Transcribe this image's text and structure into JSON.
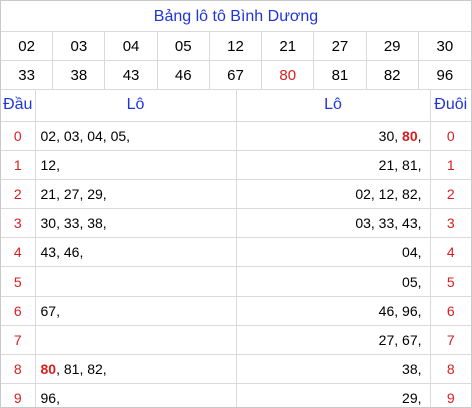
{
  "title": "Bảng lô tô Bình Dương",
  "numbers": [
    {
      "v": "02"
    },
    {
      "v": "03"
    },
    {
      "v": "04"
    },
    {
      "v": "05"
    },
    {
      "v": "12"
    },
    {
      "v": "21"
    },
    {
      "v": "27"
    },
    {
      "v": "29"
    },
    {
      "v": "30"
    },
    {
      "v": "33"
    },
    {
      "v": "38"
    },
    {
      "v": "43"
    },
    {
      "v": "46"
    },
    {
      "v": "67"
    },
    {
      "v": "80",
      "highlight": true
    },
    {
      "v": "81"
    },
    {
      "v": "82"
    },
    {
      "v": "96"
    }
  ],
  "headers": {
    "dau": "Đầu",
    "lo_left": "Lô",
    "lo_right": "Lô",
    "duoi": "Đuôi"
  },
  "rows": [
    {
      "dau": "0",
      "left": [
        {
          "v": "02"
        },
        {
          "v": "03"
        },
        {
          "v": "04"
        },
        {
          "v": "05"
        }
      ],
      "right": [
        {
          "v": "30"
        },
        {
          "v": "80",
          "special": true
        }
      ],
      "duoi": "0"
    },
    {
      "dau": "1",
      "left": [
        {
          "v": "12"
        }
      ],
      "right": [
        {
          "v": "21"
        },
        {
          "v": "81"
        }
      ],
      "duoi": "1"
    },
    {
      "dau": "2",
      "left": [
        {
          "v": "21"
        },
        {
          "v": "27"
        },
        {
          "v": "29"
        }
      ],
      "right": [
        {
          "v": "02"
        },
        {
          "v": "12"
        },
        {
          "v": "82"
        }
      ],
      "duoi": "2"
    },
    {
      "dau": "3",
      "left": [
        {
          "v": "30"
        },
        {
          "v": "33"
        },
        {
          "v": "38"
        }
      ],
      "right": [
        {
          "v": "03"
        },
        {
          "v": "33"
        },
        {
          "v": "43"
        }
      ],
      "duoi": "3"
    },
    {
      "dau": "4",
      "left": [
        {
          "v": "43"
        },
        {
          "v": "46"
        }
      ],
      "right": [
        {
          "v": "04"
        }
      ],
      "duoi": "4"
    },
    {
      "dau": "5",
      "left": [],
      "right": [
        {
          "v": "05"
        }
      ],
      "duoi": "5"
    },
    {
      "dau": "6",
      "left": [
        {
          "v": "67"
        }
      ],
      "right": [
        {
          "v": "46"
        },
        {
          "v": "96"
        }
      ],
      "duoi": "6"
    },
    {
      "dau": "7",
      "left": [],
      "right": [
        {
          "v": "27"
        },
        {
          "v": "67"
        }
      ],
      "duoi": "7"
    },
    {
      "dau": "8",
      "left": [
        {
          "v": "80",
          "special": true
        },
        {
          "v": "81"
        },
        {
          "v": "82"
        }
      ],
      "right": [
        {
          "v": "38"
        }
      ],
      "duoi": "8"
    },
    {
      "dau": "9",
      "left": [
        {
          "v": "96"
        }
      ],
      "right": [
        {
          "v": "29"
        }
      ],
      "duoi": "9"
    }
  ],
  "colors": {
    "title": "#1f35d6",
    "accent": "#d61f1f",
    "border": "#d9d9d9"
  }
}
